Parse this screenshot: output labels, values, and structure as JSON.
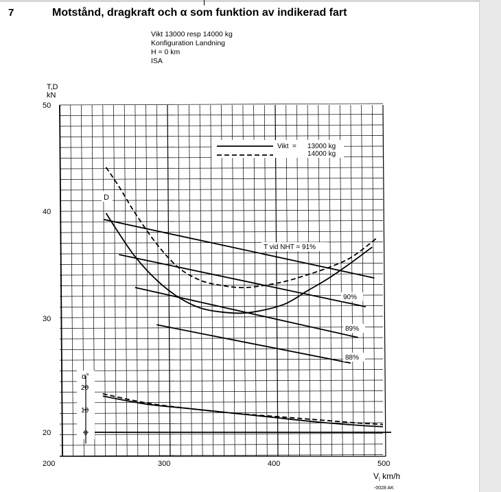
{
  "page_number": "7",
  "title": "Motstånd, dragkraft och α som funktion av indikerad fart",
  "conditions": [
    "Vikt 13000 resp 14000 kg",
    "Konfiguration Landning",
    "H = 0 km",
    "ISA"
  ],
  "footnote": "-0028 AK",
  "chart_data": {
    "type": "line",
    "ylabel_lines": [
      "T,D",
      "kN"
    ],
    "xlabel": "Vi km/h",
    "xlim": [
      200,
      500
    ],
    "ylim": [
      20,
      50
    ],
    "x_ticks": [
      "200",
      "300",
      "400",
      "500"
    ],
    "y_ticks": [
      "20",
      "30",
      "40",
      "50"
    ],
    "grid": true,
    "legend": {
      "position": "top-right",
      "label": "Vikt  =",
      "entries": [
        {
          "text": "13000 kg",
          "style": "solid"
        },
        {
          "text": "14000 kg",
          "style": "dashed"
        }
      ]
    },
    "alpha_axis": {
      "label": "α°",
      "ticks": [
        "20",
        "10",
        "0"
      ],
      "range": [
        0,
        20
      ]
    },
    "drag_label": "D",
    "drag_13000": [
      [
        243,
        39.9
      ],
      [
        255,
        38.0
      ],
      [
        270,
        35.8
      ],
      [
        290,
        33.6
      ],
      [
        310,
        32.0
      ],
      [
        330,
        31.0
      ],
      [
        350,
        30.6
      ],
      [
        370,
        30.5
      ],
      [
        390,
        30.8
      ],
      [
        410,
        31.4
      ],
      [
        430,
        32.6
      ],
      [
        450,
        33.8
      ],
      [
        470,
        35.2
      ],
      [
        490,
        36.7
      ]
    ],
    "drag_14000": [
      [
        243,
        44.2
      ],
      [
        255,
        42.4
      ],
      [
        270,
        39.9
      ],
      [
        290,
        37.0
      ],
      [
        310,
        34.8
      ],
      [
        330,
        33.6
      ],
      [
        350,
        33.1
      ],
      [
        370,
        32.9
      ],
      [
        390,
        33.1
      ],
      [
        410,
        33.5
      ],
      [
        430,
        34.1
      ],
      [
        450,
        34.8
      ],
      [
        470,
        35.7
      ],
      [
        490,
        37.2
      ],
      [
        494,
        37.6
      ]
    ],
    "thrust_lines": [
      {
        "label": "T vid NHT = 91%",
        "points": [
          [
            241,
            39.3
          ],
          [
            492,
            33.8
          ]
        ]
      },
      {
        "label": "90%",
        "points": [
          [
            255,
            36.0
          ],
          [
            484,
            31.1
          ]
        ]
      },
      {
        "label": "89%",
        "points": [
          [
            270,
            32.9
          ],
          [
            477,
            28.2
          ]
        ]
      },
      {
        "label": "88%",
        "points": [
          [
            290,
            29.4
          ],
          [
            470,
            25.8
          ]
        ]
      }
    ],
    "alpha_13000": [
      [
        240,
        16.0
      ],
      [
        280,
        12.5
      ],
      [
        320,
        10.5
      ],
      [
        360,
        8.5
      ],
      [
        400,
        6.5
      ],
      [
        440,
        4.5
      ],
      [
        480,
        3.0
      ],
      [
        500,
        2.5
      ]
    ],
    "alpha_14000": [
      [
        240,
        17.0
      ],
      [
        280,
        13.0
      ],
      [
        320,
        10.5
      ],
      [
        360,
        8.5
      ],
      [
        400,
        7.0
      ],
      [
        440,
        5.5
      ],
      [
        480,
        4.0
      ],
      [
        500,
        3.5
      ]
    ]
  }
}
